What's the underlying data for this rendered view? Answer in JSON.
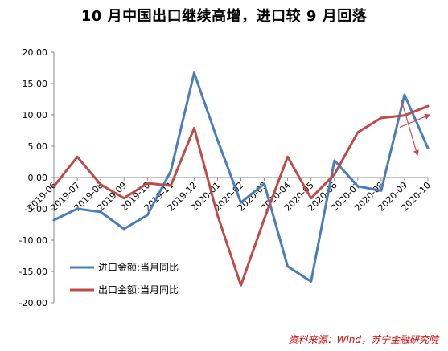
{
  "chart_data": {
    "type": "line",
    "title": "10 月中国出口继续高增，进口较 9 月回落",
    "categories": [
      "2019-06",
      "2019-07",
      "2019-08",
      "2019-09",
      "2019-10",
      "2019-11",
      "2019-12",
      "2020-01",
      "2020-02",
      "2020-03",
      "2020-04",
      "2020-05",
      "2020-06",
      "2020-07",
      "2020-08",
      "2020-09",
      "2020-10"
    ],
    "series": [
      {
        "name": "进口金额:当月同比",
        "color": "#4a7ebb",
        "values": [
          -6.8,
          -5.0,
          -5.5,
          -8.2,
          -6.0,
          1.0,
          16.7,
          6.0,
          -4.0,
          -1.0,
          -14.2,
          -16.6,
          2.7,
          -1.4,
          -2.1,
          13.2,
          4.7
        ]
      },
      {
        "name": "出口金额:当月同比",
        "color": "#be4b48",
        "values": [
          -1.4,
          3.3,
          -1.1,
          -3.3,
          -0.9,
          -1.3,
          7.9,
          -6.0,
          -17.2,
          -6.6,
          3.3,
          -3.3,
          0.5,
          7.2,
          9.5,
          9.9,
          11.4
        ]
      }
    ],
    "ylim": [
      -20,
      20
    ],
    "yticks": [
      "20.00",
      "15.00",
      "10.00",
      "5.00",
      "0.00",
      "-5.00",
      "-10.00",
      "-15.00",
      "-20.00"
    ],
    "grid": false,
    "legend": "bottom-left",
    "annotation_color": "#c0504d",
    "source": "资料来源：Wind，苏宁金融研究院"
  }
}
